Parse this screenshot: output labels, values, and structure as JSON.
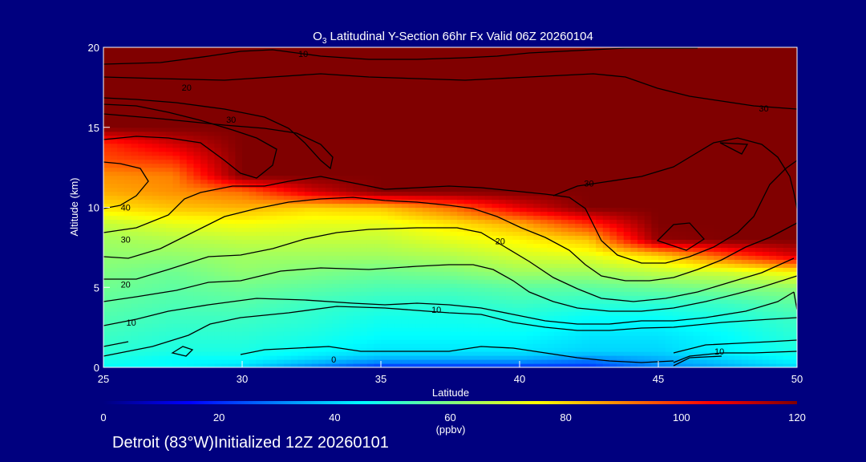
{
  "chart_data": {
    "type": "heatmap",
    "title_prefix": "O",
    "title_subscript": "3",
    "title_rest": " Latitudinal Y-Section 66hr  Fx Valid 06Z 20260104",
    "xlabel": "Latitude",
    "ylabel": "Altitude (km)",
    "xlim": [
      25,
      50
    ],
    "ylim": [
      0,
      20
    ],
    "x_ticks": [
      25,
      30,
      35,
      40,
      45,
      50
    ],
    "y_ticks": [
      0,
      5,
      10,
      15,
      20
    ],
    "colorbar": {
      "range": [
        0,
        120
      ],
      "ticks": [
        0,
        20,
        40,
        60,
        80,
        100,
        120
      ],
      "unit": "(ppbv)",
      "colors": [
        "#00007f",
        "#0000ff",
        "#0080ff",
        "#00ffff",
        "#80ff80",
        "#ffff00",
        "#ff8000",
        "#ff0000",
        "#800000"
      ]
    },
    "lat_grid": [
      25,
      27.5,
      30,
      32.5,
      35,
      37.5,
      40,
      42.5,
      45,
      47.5,
      50
    ],
    "alt_grid": [
      0,
      0.5,
      1,
      2,
      3,
      4,
      5,
      6,
      7,
      8,
      9,
      10,
      11,
      12,
      13,
      14,
      15,
      16,
      17,
      18,
      19,
      20
    ],
    "ozone_field": [
      [
        45,
        45,
        40,
        30,
        20,
        20,
        20,
        20,
        30,
        35,
        40
      ],
      [
        48,
        45,
        45,
        40,
        35,
        35,
        35,
        30,
        35,
        40,
        45
      ],
      [
        50,
        48,
        48,
        45,
        42,
        42,
        42,
        40,
        40,
        44,
        48
      ],
      [
        52,
        50,
        50,
        48,
        45,
        45,
        45,
        42,
        42,
        45,
        50
      ],
      [
        54,
        52,
        52,
        50,
        47,
        47,
        48,
        45,
        45,
        48,
        52
      ],
      [
        56,
        54,
        55,
        52,
        50,
        50,
        52,
        50,
        50,
        52,
        56
      ],
      [
        58,
        56,
        58,
        56,
        54,
        54,
        56,
        56,
        58,
        60,
        62
      ],
      [
        60,
        58,
        62,
        60,
        58,
        60,
        64,
        64,
        68,
        70,
        76
      ],
      [
        62,
        62,
        64,
        64,
        64,
        66,
        70,
        72,
        80,
        96,
        110
      ],
      [
        64,
        66,
        68,
        68,
        68,
        72,
        76,
        82,
        118,
        120,
        120
      ],
      [
        68,
        72,
        74,
        72,
        72,
        78,
        85,
        100,
        120,
        120,
        120
      ],
      [
        78,
        82,
        84,
        80,
        82,
        92,
        108,
        120,
        120,
        120,
        120
      ],
      [
        85,
        88,
        92,
        110,
        120,
        120,
        120,
        120,
        120,
        120,
        120
      ],
      [
        88,
        90,
        120,
        120,
        120,
        120,
        120,
        120,
        120,
        120,
        120
      ],
      [
        96,
        100,
        120,
        120,
        120,
        120,
        120,
        120,
        120,
        120,
        120
      ],
      [
        100,
        110,
        120,
        120,
        120,
        120,
        120,
        120,
        120,
        120,
        120
      ],
      [
        120,
        120,
        120,
        120,
        120,
        120,
        120,
        120,
        120,
        120,
        120
      ],
      [
        120,
        120,
        120,
        120,
        120,
        120,
        120,
        120,
        120,
        120,
        120
      ],
      [
        120,
        120,
        120,
        120,
        120,
        120,
        120,
        120,
        120,
        120,
        120
      ],
      [
        120,
        120,
        120,
        120,
        120,
        120,
        120,
        120,
        120,
        120,
        120
      ],
      [
        120,
        120,
        120,
        120,
        120,
        120,
        120,
        120,
        120,
        120,
        120
      ],
      [
        120,
        120,
        120,
        120,
        120,
        120,
        120,
        120,
        120,
        120,
        120
      ]
    ],
    "contour_labels": [
      {
        "text": "10",
        "lat": 32.2,
        "alt": 19.6
      },
      {
        "text": "20",
        "lat": 28.0,
        "alt": 17.5
      },
      {
        "text": "30",
        "lat": 29.6,
        "alt": 15.5
      },
      {
        "text": "30",
        "lat": 48.8,
        "alt": 16.2
      },
      {
        "text": "30",
        "lat": 42.5,
        "alt": 11.5
      },
      {
        "text": "40",
        "lat": 25.8,
        "alt": 10.0
      },
      {
        "text": "30",
        "lat": 25.8,
        "alt": 8.0
      },
      {
        "text": "20",
        "lat": 39.3,
        "alt": 7.9
      },
      {
        "text": "20",
        "lat": 25.8,
        "alt": 5.2
      },
      {
        "text": "10",
        "lat": 26.0,
        "alt": 2.8
      },
      {
        "text": "10",
        "lat": 37.0,
        "alt": 3.6
      },
      {
        "text": "10",
        "lat": 47.2,
        "alt": 1.0
      },
      {
        "text": "0",
        "lat": 33.3,
        "alt": 0.5
      }
    ]
  },
  "footer": {
    "text": "Detroit (83°W)Initialized 12Z 20260101"
  }
}
